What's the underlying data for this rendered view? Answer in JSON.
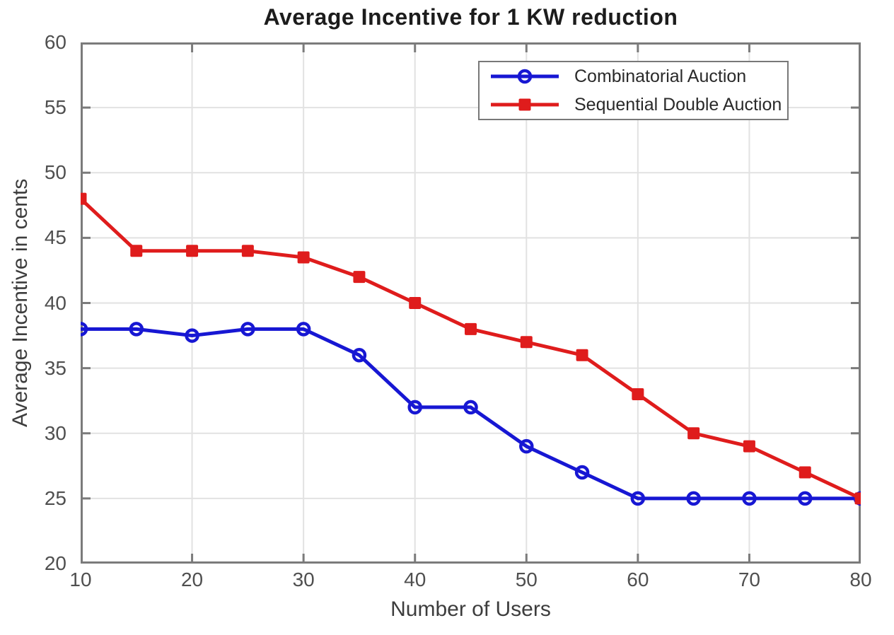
{
  "chart_data": {
    "type": "line",
    "title": "Average Incentive for 1 KW reduction",
    "xlabel": "Number of Users",
    "ylabel": "Average Incentive in cents",
    "xlim": [
      10,
      80
    ],
    "ylim": [
      20,
      60
    ],
    "xticks": [
      10,
      20,
      30,
      40,
      50,
      60,
      70,
      80
    ],
    "yticks": [
      20,
      25,
      30,
      35,
      40,
      45,
      50,
      55,
      60
    ],
    "grid": true,
    "legend_position": "top-right",
    "x": [
      10,
      15,
      20,
      25,
      30,
      35,
      40,
      45,
      50,
      55,
      60,
      65,
      70,
      75,
      80
    ],
    "series": [
      {
        "name": "Combinatorial Auction",
        "color": "#1717d3",
        "marker": "open-circle",
        "values": [
          38,
          38,
          37.5,
          38,
          38,
          36,
          32,
          32,
          29,
          27,
          25,
          25,
          25,
          25,
          25
        ]
      },
      {
        "name": "Sequential Double Auction",
        "color": "#df1c1c",
        "marker": "filled-square",
        "values": [
          48,
          44,
          44,
          44,
          43.5,
          42,
          40,
          38,
          37,
          36,
          33,
          30,
          29,
          27,
          25
        ]
      }
    ]
  },
  "colors": {
    "background": "#ffffff",
    "grid": "#e2e2e2",
    "axis": "#7b7b7b",
    "tick_label": "#4f4f4f",
    "axis_label": "#3d3d3d",
    "title": "#1c1c1c",
    "legend_border": "#787878"
  }
}
